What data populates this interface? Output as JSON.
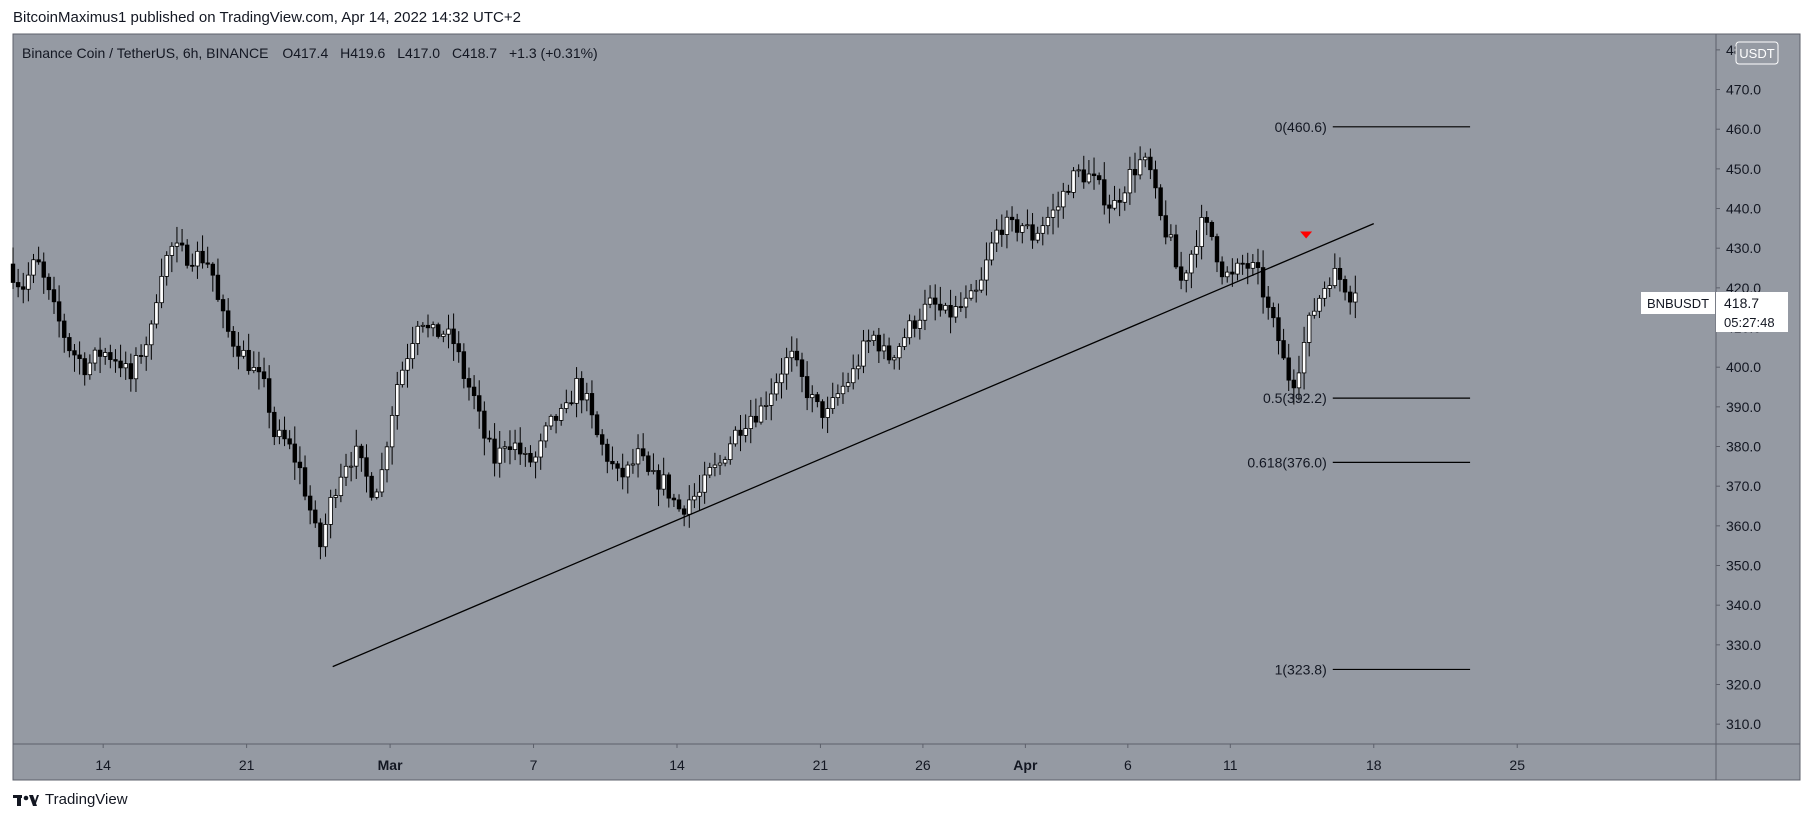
{
  "header": {
    "published_by": "BitcoinMaximus1 published on TradingView.com, Apr 14, 2022 14:32 UTC+2"
  },
  "footer": {
    "brand": "TradingView",
    "logo_icon": "tradingview-logo-icon"
  },
  "colors": {
    "pane_bg": "#959aa3",
    "border": "#5d606b",
    "candle_up": "#ffffff",
    "candle_down": "#000000",
    "text": "#131722",
    "marker": "#ff0000"
  },
  "chart_data": {
    "type": "candlestick",
    "symbol": "Binance Coin / TetherUS, 6h, BINANCE",
    "ticker": "BNBUSDT",
    "currency": "USDT",
    "ohlc_legend": {
      "O": "417.4",
      "H": "419.6",
      "L": "417.0",
      "C": "418.7",
      "change": "+1.3 (+0.31%)"
    },
    "last_price": "418.7",
    "countdown": "05:27:48",
    "y_ticks": [
      "310.0",
      "320.0",
      "330.0",
      "340.0",
      "350.0",
      "360.0",
      "370.0",
      "380.0",
      "390.0",
      "400.0",
      "410.0",
      "420.0",
      "430.0",
      "440.0",
      "450.0",
      "460.0",
      "470.0",
      "480.0"
    ],
    "ylim": [
      305,
      484
    ],
    "x_ticks": [
      {
        "label": "14",
        "day": 14,
        "bold": false
      },
      {
        "label": "21",
        "day": 21,
        "bold": false
      },
      {
        "label": "Mar",
        "day": 28,
        "bold": true
      },
      {
        "label": "7",
        "day": 35,
        "bold": false
      },
      {
        "label": "14",
        "day": 42,
        "bold": false
      },
      {
        "label": "21",
        "day": 49,
        "bold": false
      },
      {
        "label": "26",
        "day": 54,
        "bold": false
      },
      {
        "label": "Apr",
        "day": 59,
        "bold": true
      },
      {
        "label": "6",
        "day": 64,
        "bold": false
      },
      {
        "label": "11",
        "day": 69,
        "bold": false
      },
      {
        "label": "18",
        "day": 76,
        "bold": false
      },
      {
        "label": "25",
        "day": 83,
        "bold": false
      }
    ],
    "xlim": [
      9.6,
      92.7
    ],
    "fib_levels": [
      {
        "label": "0(460.6)",
        "price": 460.6
      },
      {
        "label": "0.5(392.2)",
        "price": 392.2
      },
      {
        "label": "0.618(376.0)",
        "price": 376.0
      },
      {
        "label": "1(323.8)",
        "price": 323.8
      }
    ],
    "fib_x_range": [
      74,
      80.7
    ],
    "trendline": {
      "x1": 25.2,
      "y1": 324.5,
      "x2": 76,
      "y2": 436.2
    },
    "marker": {
      "x": 72.7,
      "y": 433.2
    },
    "waypoints": [
      [
        9.6,
        426
      ],
      [
        10.3,
        420
      ],
      [
        11,
        427
      ],
      [
        11.8,
        415
      ],
      [
        12.6,
        405
      ],
      [
        13.4,
        400
      ],
      [
        14.2,
        404
      ],
      [
        15,
        402
      ],
      [
        15.6,
        397
      ],
      [
        16,
        403
      ],
      [
        16.6,
        409
      ],
      [
        17,
        424
      ],
      [
        17.6,
        430
      ],
      [
        18.4,
        428
      ],
      [
        19,
        428
      ],
      [
        19.5,
        426
      ],
      [
        19.9,
        415
      ],
      [
        20.4,
        408
      ],
      [
        21,
        404
      ],
      [
        21.6,
        399
      ],
      [
        22.2,
        394
      ],
      [
        22.6,
        383
      ],
      [
        23.2,
        381
      ],
      [
        23.8,
        375
      ],
      [
        24.4,
        363
      ],
      [
        24.8,
        354
      ],
      [
        25,
        358
      ],
      [
        25.4,
        367
      ],
      [
        26,
        376
      ],
      [
        26.6,
        378
      ],
      [
        27,
        373
      ],
      [
        27.4,
        369
      ],
      [
        27.8,
        372
      ],
      [
        28.2,
        385
      ],
      [
        28.6,
        396
      ],
      [
        29.2,
        405
      ],
      [
        29.7,
        414
      ],
      [
        30.2,
        408
      ],
      [
        30.8,
        409
      ],
      [
        31.4,
        406
      ],
      [
        31.9,
        397
      ],
      [
        32.3,
        393
      ],
      [
        32.8,
        383
      ],
      [
        33.4,
        376
      ],
      [
        33.9,
        382
      ],
      [
        34.4,
        380
      ],
      [
        34.9,
        376
      ],
      [
        35.4,
        377
      ],
      [
        35.9,
        384
      ],
      [
        36.3,
        387
      ],
      [
        36.8,
        388
      ],
      [
        37.3,
        396
      ],
      [
        37.8,
        392
      ],
      [
        38.3,
        383
      ],
      [
        38.9,
        377
      ],
      [
        39.4,
        372
      ],
      [
        39.9,
        374
      ],
      [
        40.4,
        378
      ],
      [
        40.9,
        372
      ],
      [
        41.6,
        371
      ],
      [
        42,
        367
      ],
      [
        42.4,
        364
      ],
      [
        42.9,
        367
      ],
      [
        43.4,
        368
      ],
      [
        43.8,
        373
      ],
      [
        44.3,
        375
      ],
      [
        44.8,
        381
      ],
      [
        45.3,
        385
      ],
      [
        45.8,
        388
      ],
      [
        46.3,
        389
      ],
      [
        46.8,
        394
      ],
      [
        47.4,
        400
      ],
      [
        47.8,
        403
      ],
      [
        48.4,
        396
      ],
      [
        49,
        390
      ],
      [
        49.6,
        388
      ],
      [
        50.2,
        394
      ],
      [
        50.8,
        398
      ],
      [
        51.4,
        405
      ],
      [
        51.9,
        408
      ],
      [
        52.5,
        402
      ],
      [
        53,
        405
      ],
      [
        53.6,
        410
      ],
      [
        54.2,
        414
      ],
      [
        54.7,
        416
      ],
      [
        55.3,
        413
      ],
      [
        55.8,
        414
      ],
      [
        56.4,
        416
      ],
      [
        57,
        419
      ],
      [
        57.5,
        429
      ],
      [
        58,
        436
      ],
      [
        58.6,
        435
      ],
      [
        59.1,
        436
      ],
      [
        59.6,
        433
      ],
      [
        60.2,
        437
      ],
      [
        60.8,
        440
      ],
      [
        61.3,
        446
      ],
      [
        61.8,
        449
      ],
      [
        62.4,
        448
      ],
      [
        63,
        444
      ],
      [
        63.5,
        440
      ],
      [
        64,
        445
      ],
      [
        64.4,
        449
      ],
      [
        64.9,
        452
      ],
      [
        65.3,
        450
      ],
      [
        65.8,
        438
      ],
      [
        66.3,
        432
      ],
      [
        66.8,
        421
      ],
      [
        67.3,
        428
      ],
      [
        67.8,
        436
      ],
      [
        68.3,
        434
      ],
      [
        68.8,
        425
      ],
      [
        69.3,
        422
      ],
      [
        69.8,
        426
      ],
      [
        70.3,
        425
      ],
      [
        70.7,
        422
      ],
      [
        71.1,
        414
      ],
      [
        71.6,
        407
      ],
      [
        72,
        398
      ],
      [
        72.4,
        397
      ],
      [
        72.8,
        405
      ],
      [
        73.2,
        413
      ],
      [
        73.7,
        419
      ],
      [
        74.2,
        424
      ],
      [
        74.7,
        422
      ],
      [
        75.1,
        418.7
      ]
    ]
  }
}
